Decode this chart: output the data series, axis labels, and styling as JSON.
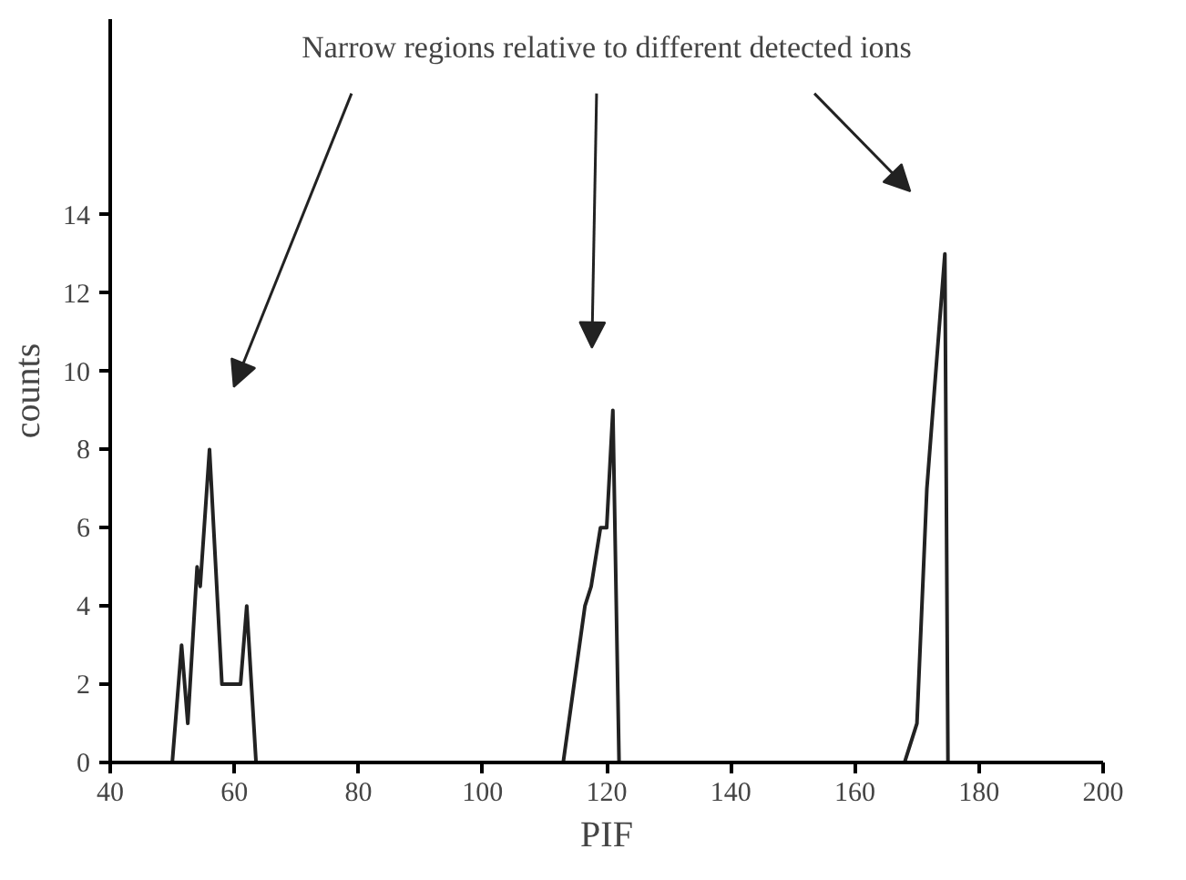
{
  "chart_data": {
    "type": "line",
    "xlabel": "PIF",
    "ylabel": "counts",
    "annotations": [
      "Narrow regions relative to different detected ions"
    ],
    "series": [
      {
        "color": "#222222",
        "x": [
          50,
          51.5,
          52.5,
          54,
          54.5,
          56,
          58,
          61,
          62,
          63.5
        ],
        "values": [
          0,
          3,
          1,
          5,
          4.5,
          8,
          2,
          2,
          4,
          0
        ]
      },
      {
        "color": "#222222",
        "x": [
          113,
          116.5,
          117.5,
          119,
          120,
          121,
          122
        ],
        "values": [
          0,
          4,
          4.5,
          6,
          6,
          9,
          0
        ]
      },
      {
        "color": "#222222",
        "x": [
          168,
          170,
          171.6,
          174.5,
          175
        ],
        "values": [
          0,
          1,
          7,
          13,
          0
        ]
      }
    ],
    "xlim": [
      40,
      200
    ],
    "xticks": [
      40,
      60,
      80,
      100,
      120,
      140,
      160,
      180,
      200
    ],
    "ylim": [
      0,
      19
    ],
    "yticks": [
      0,
      2,
      4,
      6,
      8,
      10,
      12,
      14
    ],
    "grid": false,
    "marker": "none",
    "line_style": "solid"
  }
}
